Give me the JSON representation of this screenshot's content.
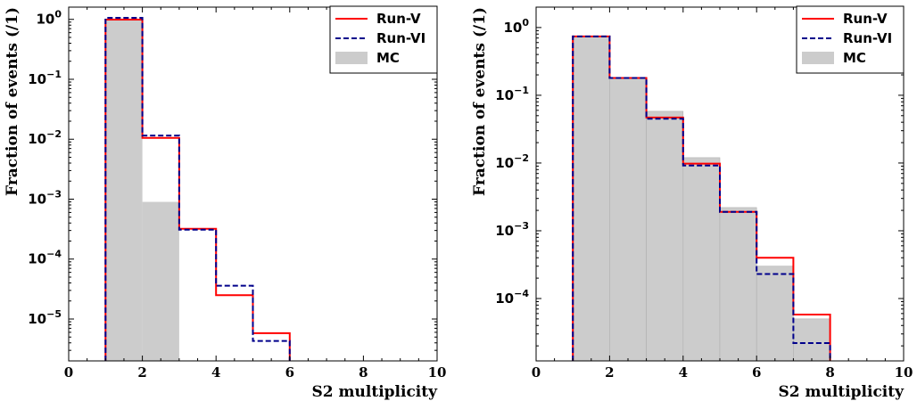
{
  "chart_data": [
    {
      "type": "histogram-step",
      "xlabel": "S2 multiplicity",
      "ylabel": "Fraction of events (/1)",
      "xlim": [
        0,
        10
      ],
      "ylim": [
        2e-06,
        1.6
      ],
      "yscale": "log",
      "x_ticks": [
        "0",
        "2",
        "4",
        "6",
        "8",
        "10"
      ],
      "y_ticks": [
        {
          "value": 1,
          "base": "10",
          "exp": "0"
        },
        {
          "value": 0.1,
          "base": "10",
          "exp": "−1"
        },
        {
          "value": 0.01,
          "base": "10",
          "exp": "−2"
        },
        {
          "value": 0.001,
          "base": "10",
          "exp": "−3"
        },
        {
          "value": 0.0001,
          "base": "10",
          "exp": "−4"
        },
        {
          "value": 1e-05,
          "base": "10",
          "exp": "−5"
        }
      ],
      "legend_position": "top-right",
      "bin_edges": [
        1,
        2,
        3,
        4,
        5,
        6
      ],
      "series": [
        {
          "name": "Run-V",
          "style": "solid",
          "color": "#ff0000",
          "values": [
            0.99,
            0.0105,
            0.00032,
            2.5e-05,
            5.8e-06
          ]
        },
        {
          "name": "Run-VI",
          "style": "dashed",
          "color": "#00008b",
          "values": [
            1.06,
            0.0115,
            0.00031,
            3.6e-05,
            4.3e-06
          ]
        },
        {
          "name": "MC",
          "style": "fill",
          "color": "#cccccc",
          "values": [
            0.99,
            0.0009
          ]
        }
      ]
    },
    {
      "type": "histogram-step",
      "xlabel": "S2 multiplicity",
      "ylabel": "Fraction of events (/1)",
      "xlim": [
        0,
        10
      ],
      "ylim": [
        1.2e-05,
        2.0
      ],
      "yscale": "log",
      "x_ticks": [
        "0",
        "2",
        "4",
        "6",
        "8",
        "10"
      ],
      "y_ticks": [
        {
          "value": 1,
          "base": "10",
          "exp": "0"
        },
        {
          "value": 0.1,
          "base": "10",
          "exp": "−1"
        },
        {
          "value": 0.01,
          "base": "10",
          "exp": "−2"
        },
        {
          "value": 0.001,
          "base": "10",
          "exp": "−3"
        },
        {
          "value": 0.0001,
          "base": "10",
          "exp": "−4"
        }
      ],
      "legend_position": "top-right",
      "bin_edges": [
        1,
        2,
        3,
        4,
        5,
        6,
        7,
        8
      ],
      "series": [
        {
          "name": "Run-V",
          "style": "solid",
          "color": "#ff0000",
          "values": [
            0.74,
            0.18,
            0.047,
            0.0098,
            0.0019,
            0.0004,
            5.8e-05
          ]
        },
        {
          "name": "Run-VI",
          "style": "dashed",
          "color": "#00008b",
          "values": [
            0.74,
            0.18,
            0.045,
            0.0092,
            0.0019,
            0.00023,
            2.2e-05
          ]
        },
        {
          "name": "MC",
          "style": "fill",
          "color": "#cccccc",
          "values": [
            0.74,
            0.18,
            0.058,
            0.012,
            0.0022,
            0.0003,
            5e-05
          ]
        }
      ]
    }
  ]
}
